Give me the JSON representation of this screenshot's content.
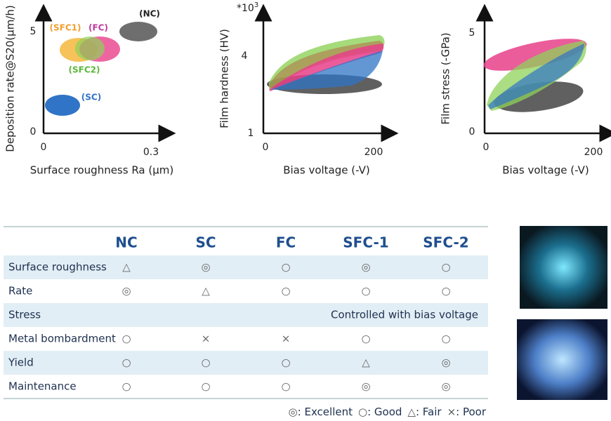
{
  "charts": [
    {
      "y_label": "Deposition rate@S20(μm/h)",
      "x_label": "Surface roughness Ra (μm)",
      "y_ticks": [
        "5",
        "0"
      ],
      "x_ticks": [
        "0",
        "0.3"
      ],
      "labels": [
        "(NC)",
        "(SFC1)",
        "(FC)",
        "(SFC2)",
        "(SC)"
      ]
    },
    {
      "y_label": "Film hardness (HV)",
      "x_label": "Bias voltage (-V)",
      "y_ticks": [
        "4",
        "1"
      ],
      "x_ticks": [
        "0",
        "200"
      ],
      "multiplier": "*10",
      "multiplier_exp": "3"
    },
    {
      "y_label": "Film stress (-GPa)",
      "x_label": "Bias voltage (-V)",
      "y_ticks": [
        "5",
        "0"
      ],
      "x_ticks": [
        "0",
        "200"
      ]
    }
  ],
  "table": {
    "columns": [
      "NC",
      "SC",
      "FC",
      "SFC-1",
      "SFC-2"
    ],
    "rows": [
      {
        "label": "Surface roughness",
        "cells": [
          "△",
          "◎",
          "○",
          "◎",
          "○"
        ]
      },
      {
        "label": "Rate",
        "cells": [
          "◎",
          "△",
          "○",
          "○",
          "○"
        ]
      },
      {
        "label": "Stress",
        "span": "Controlled with bias voltage"
      },
      {
        "label": "Metal bombardment",
        "cells": [
          "○",
          "×",
          "×",
          "○",
          "○"
        ]
      },
      {
        "label": "Yield",
        "cells": [
          "○",
          "○",
          "○",
          "△",
          "◎"
        ]
      },
      {
        "label": "Maintenance",
        "cells": [
          "○",
          "○",
          "○",
          "◎",
          "◎"
        ]
      }
    ]
  },
  "legend": [
    {
      "symbol": "◎",
      "label": ": Excellent"
    },
    {
      "symbol": "○",
      "label": ": Good"
    },
    {
      "symbol": "△",
      "label": ": Fair"
    },
    {
      "symbol": "×",
      "label": ": Poor"
    }
  ]
}
